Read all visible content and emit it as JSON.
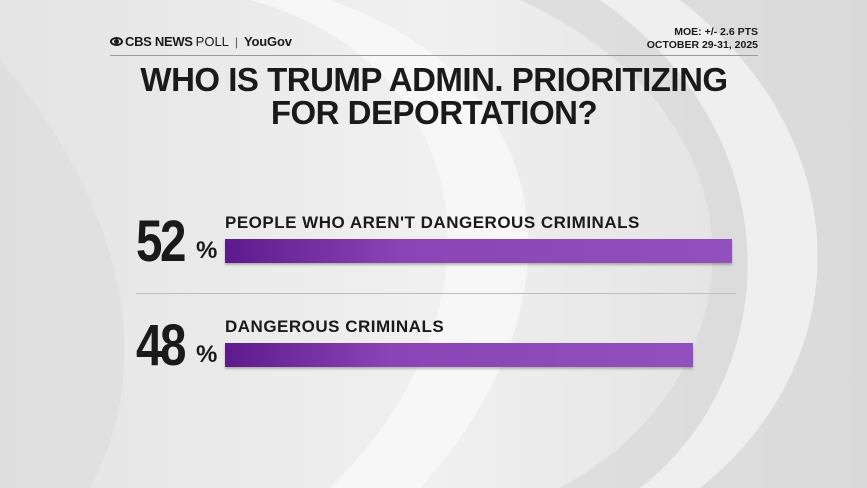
{
  "brand": {
    "network": "CBS NEWS",
    "poll": "POLL",
    "separator": "|",
    "partner": "YouGov"
  },
  "meta": {
    "moe": "MOE: +/- 2.6 PTS",
    "dates": "OCTOBER 29-31, 2025"
  },
  "title_lines": [
    "WHO IS TRUMP ADMIN. PRIORITIZING",
    "FOR DEPORTATION?"
  ],
  "colors": {
    "bar": "#8b44b5",
    "bar_dark": "#5e1a8c",
    "text": "#1a1a1a"
  },
  "chart_data": {
    "type": "bar",
    "orientation": "horizontal",
    "title": "WHO IS TRUMP ADMIN. PRIORITIZING FOR DEPORTATION?",
    "categories": [
      "PEOPLE WHO AREN'T DANGEROUS CRIMINALS",
      "DANGEROUS CRIMINALS"
    ],
    "values": [
      52,
      48
    ],
    "value_labels": [
      "52",
      "48"
    ],
    "unit": "%",
    "xlim": [
      0,
      52
    ],
    "grid": false,
    "legend": "none"
  }
}
